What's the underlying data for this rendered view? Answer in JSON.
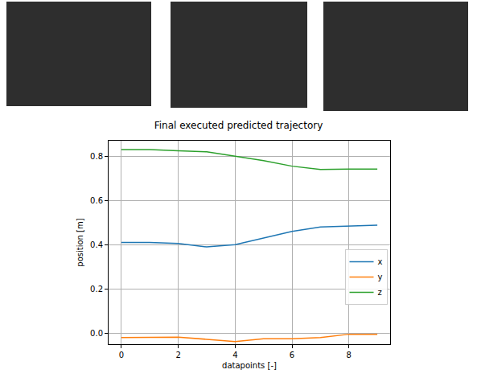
{
  "chart_data": {
    "type": "line",
    "title": "Final executed predicted trajectory",
    "xlabel": "datapoints [-]",
    "ylabel": "position [m]",
    "x": [
      0,
      1,
      2,
      3,
      4,
      5,
      6,
      7,
      8,
      9
    ],
    "series": [
      {
        "name": "x",
        "color": "#1f77b4",
        "values": [
          0.41,
          0.41,
          0.405,
          0.39,
          0.4,
          0.43,
          0.46,
          0.48,
          0.485,
          0.488
        ]
      },
      {
        "name": "y",
        "color": "#ff7f0e",
        "values": [
          -0.02,
          -0.02,
          -0.018,
          -0.028,
          -0.038,
          -0.025,
          -0.025,
          -0.02,
          -0.005,
          -0.005
        ]
      },
      {
        "name": "z",
        "color": "#2ca02c",
        "values": [
          0.83,
          0.83,
          0.825,
          0.82,
          0.8,
          0.78,
          0.755,
          0.74,
          0.742,
          0.742
        ]
      }
    ],
    "xlim": [
      -0.45,
      9.45
    ],
    "xticks": [
      0,
      2,
      4,
      6,
      8
    ],
    "ylim": [
      -0.05,
      0.87
    ],
    "yticks": [
      {
        "value": 0,
        "label": "0.0"
      },
      {
        "value": 0.2,
        "label": "0.2"
      },
      {
        "value": 0.4,
        "label": "0.4"
      },
      {
        "value": 0.6,
        "label": "0.6"
      },
      {
        "value": 0.8,
        "label": "0.8"
      }
    ],
    "grid": true,
    "legend": "right"
  }
}
